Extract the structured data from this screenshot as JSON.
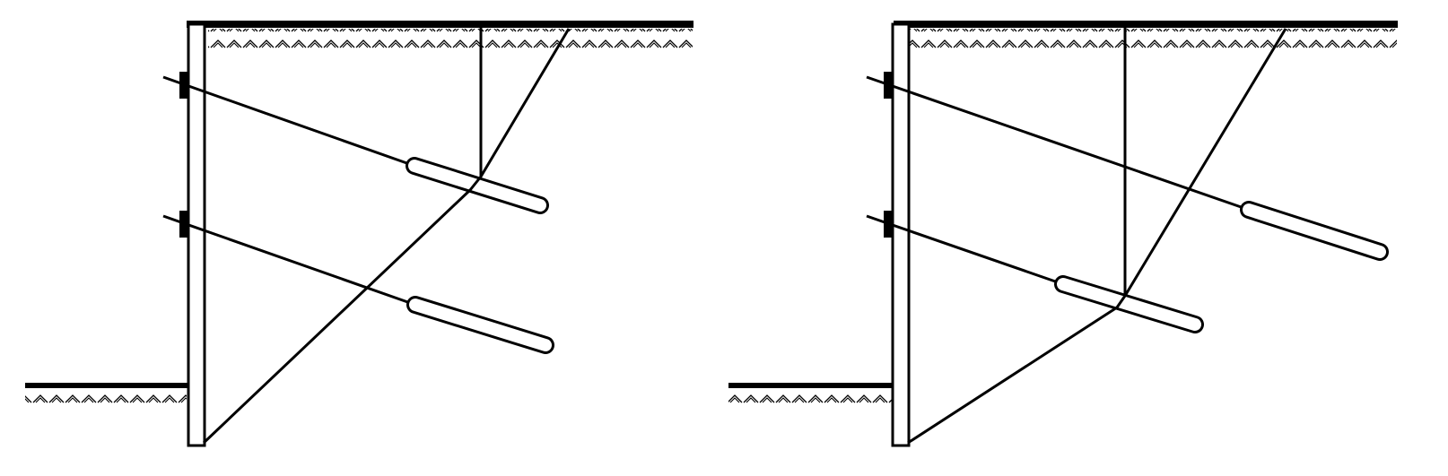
{
  "figure": {
    "panels": [
      {
        "id": "left",
        "anchor_count": 2,
        "variant": "lower-anchor-crossed-by-failure-plane"
      },
      {
        "id": "right",
        "anchor_count": 2,
        "variant": "upper-anchor-crossed-by-failure-plane"
      }
    ],
    "colors": {
      "line": "#000000",
      "background": "#ffffff"
    }
  }
}
